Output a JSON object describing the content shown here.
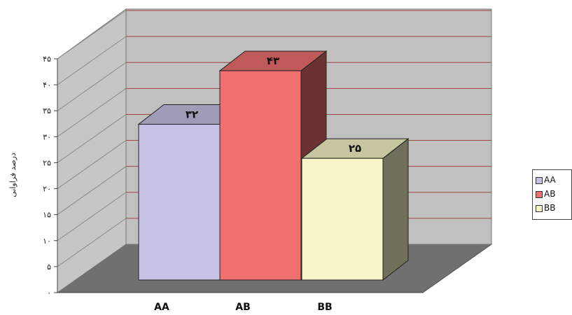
{
  "chart_data": {
    "type": "bar",
    "categories": [
      "AA",
      "AB",
      "BB"
    ],
    "values": [
      32,
      43,
      25
    ],
    "data_labels": [
      "۳۲",
      "۴۳",
      "۲۵"
    ],
    "ylabel": "درصد فراوانی",
    "ylim": [
      0,
      45
    ],
    "yticks": [
      0,
      5,
      10,
      15,
      20,
      25,
      30,
      35,
      40,
      45
    ],
    "ytick_labels": [
      "۰",
      "۵",
      "۱۰",
      "۱۵",
      "۲۰",
      "۲۵",
      "۳۰",
      "۳۵",
      "۴۰",
      "۴۵"
    ],
    "grid": true,
    "three_d": true,
    "legend": {
      "position": "right",
      "entries": [
        "AA",
        "AB",
        "BB"
      ]
    },
    "colors": {
      "AA": "#c7c3e6",
      "AB": "#f07070",
      "BB": "#f8f6c8"
    },
    "gridline_color": "#a04545",
    "wall_color": "#c0c0c0",
    "floor_color": "#707070"
  }
}
